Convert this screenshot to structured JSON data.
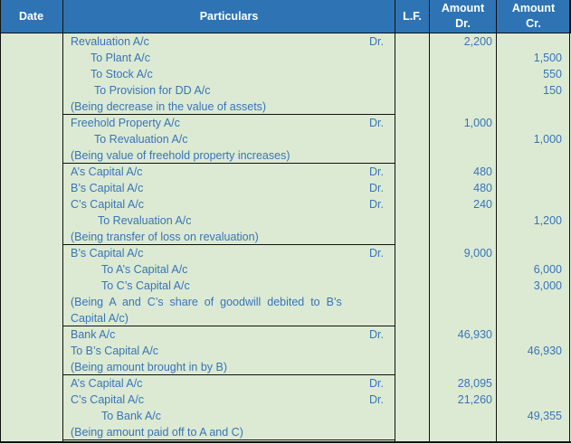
{
  "header": {
    "date": "Date",
    "particulars": "Particulars",
    "lf": "L.F.",
    "amount_dr": "Amount Dr.",
    "amount_cr": "Amount Cr."
  },
  "entries": [
    {
      "lines": [
        {
          "text": "Revaluation A/c",
          "dr": "Dr.",
          "debit": "2,200",
          "indent": 0
        },
        {
          "text": "To Plant A/c",
          "credit": "1,500",
          "indent": 22
        },
        {
          "text": "To Stock A/c",
          "credit": "550",
          "indent": 22
        },
        {
          "text": "To Provision for DD A/c",
          "credit": "150",
          "indent": 26
        },
        {
          "text": "(Being decrease in the value of assets)",
          "indent": 0
        }
      ]
    },
    {
      "lines": [
        {
          "text": "Freehold Property A/c",
          "dr": "Dr.",
          "debit": "1,000",
          "indent": 0
        },
        {
          "text": "To Revaluation A/c",
          "credit": "1,000",
          "indent": 26
        },
        {
          "text": "(Being value of freehold property increases)",
          "indent": 0
        }
      ]
    },
    {
      "lines": [
        {
          "text": "A’s Capital A/c",
          "dr": "Dr.",
          "debit": "480",
          "indent": 0
        },
        {
          "text": "B’s Capital A/c",
          "dr": "Dr.",
          "debit": "480",
          "indent": 0
        },
        {
          "text": "C’s Capital A/c",
          "dr": "Dr.",
          "debit": "240",
          "indent": 0
        },
        {
          "text": "To Revaluation A/c",
          "credit": "1,200",
          "indent": 30
        },
        {
          "text": "(Being transfer of loss on revaluation)",
          "indent": 0
        }
      ]
    },
    {
      "lines": [
        {
          "text": "B’s Capital A/c",
          "dr": "Dr.",
          "debit": "9,000",
          "indent": 0
        },
        {
          "text": "To A’s Capital A/c",
          "credit": "6,000",
          "indent": 34
        },
        {
          "text": "To C’s Capital A/c",
          "credit": "3,000",
          "indent": 34
        },
        {
          "text": "(Being  A  and  C’s  share  of  goodwill  debited  to  B’s",
          "indent": 0
        },
        {
          "text": "Capital A/c)",
          "indent": 0
        }
      ]
    },
    {
      "lines": [
        {
          "text": "Bank A/c",
          "dr": "Dr.",
          "debit": "46,930",
          "indent": 0
        },
        {
          "text": "To B’s Capital A/c",
          "credit": "46,930",
          "indent": 0
        },
        {
          "text": "(Being amount brought in by B)",
          "indent": 0
        }
      ]
    },
    {
      "lines": [
        {
          "text": "A’s Capital A/c",
          "dr": "Dr.",
          "debit": "28,095",
          "indent": 0
        },
        {
          "text": "C’s Capital A/c",
          "dr": "Dr.",
          "debit": "21,260",
          "indent": 0
        },
        {
          "text": "To Bank A/c",
          "credit": "49,355",
          "indent": 34
        },
        {
          "text": "(Being amount paid off to A and C)",
          "indent": 0
        }
      ]
    }
  ]
}
